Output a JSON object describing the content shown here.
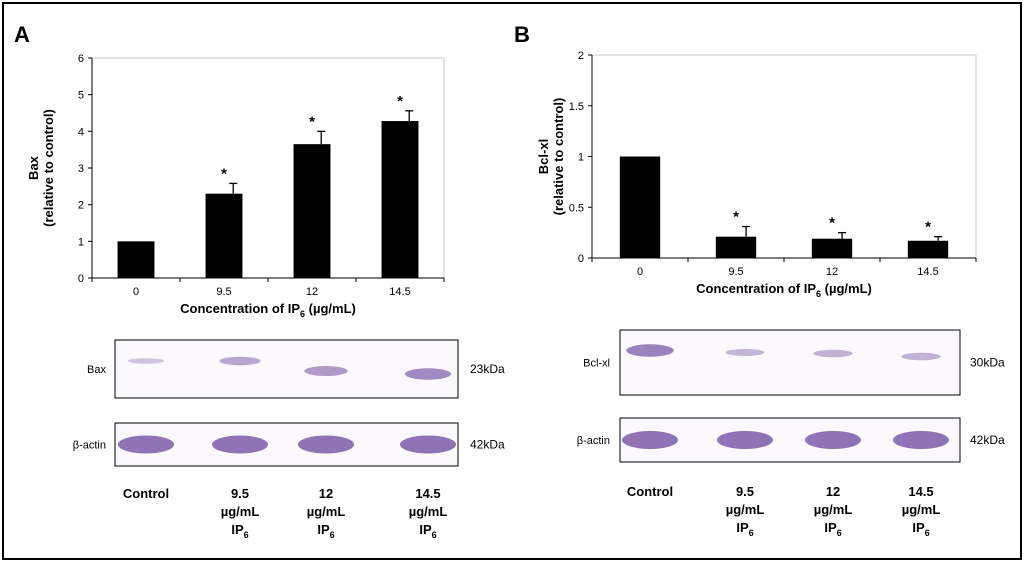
{
  "colors": {
    "bar": "#000000",
    "band": "#7c5ca8",
    "frame": "#000000"
  },
  "chart_data": [
    {
      "type": "bar",
      "panel": "A",
      "categories": [
        "0",
        "9.5",
        "12",
        "14.5"
      ],
      "values": [
        1,
        2.3,
        3.65,
        4.28
      ],
      "errors": [
        0,
        0.28,
        0.35,
        0.28
      ],
      "significance": [
        "",
        "*",
        "*",
        "*"
      ],
      "ylabel_line1": "Bax",
      "ylabel_line2": "(relative to control)",
      "xlabel_main": "Concentration of IP",
      "xlabel_sub": "6",
      "xlabel_tail": " (µg/mL)",
      "ylim": [
        0,
        6
      ],
      "yticks": [
        "0",
        "1",
        "2",
        "3",
        "4",
        "5",
        "6"
      ]
    },
    {
      "type": "bar",
      "panel": "B",
      "categories": [
        "0",
        "9.5",
        "12",
        "14.5"
      ],
      "values": [
        1,
        0.21,
        0.19,
        0.17
      ],
      "errors": [
        0,
        0.1,
        0.06,
        0.04
      ],
      "significance": [
        "",
        "*",
        "*",
        "*"
      ],
      "ylabel_line1": "Bcl-xl",
      "ylabel_line2": "(relative to control)",
      "xlabel_main": "Concentration of IP",
      "xlabel_sub": "6",
      "xlabel_tail": " (µg/mL)",
      "ylim": [
        0,
        2
      ],
      "yticks": [
        "0",
        "0.5",
        "1",
        "1.5",
        "2"
      ]
    }
  ],
  "blots": {
    "A": {
      "rows": [
        {
          "label": "Bax",
          "kda": "23kDa",
          "intensity": [
            0.15,
            0.45,
            0.6,
            0.75
          ]
        },
        {
          "label": "β-actin",
          "kda": "42kDa",
          "intensity": [
            1,
            1,
            1,
            1
          ]
        }
      ],
      "lanes": [
        {
          "line1": "Control",
          "line2": "",
          "line3": "",
          "sub": ""
        },
        {
          "line1": "9.5",
          "line2": "µg/mL",
          "line3": "IP",
          "sub": "6"
        },
        {
          "line1": "12",
          "line2": "µg/mL",
          "line3": "IP",
          "sub": "6"
        },
        {
          "line1": "14.5",
          "line2": "µg/mL",
          "line3": "IP",
          "sub": "6"
        }
      ]
    },
    "B": {
      "rows": [
        {
          "label": "Bcl-xl",
          "kda": "30kDa",
          "intensity": [
            0.85,
            0.3,
            0.35,
            0.35
          ]
        },
        {
          "label": "β-actin",
          "kda": "42kDa",
          "intensity": [
            1,
            1,
            1,
            1
          ]
        }
      ],
      "lanes": [
        {
          "line1": "Control",
          "line2": "",
          "line3": "",
          "sub": ""
        },
        {
          "line1": "9.5",
          "line2": "µg/mL",
          "line3": "IP",
          "sub": "6"
        },
        {
          "line1": "12",
          "line2": "µg/mL",
          "line3": "IP",
          "sub": "6"
        },
        {
          "line1": "14.5",
          "line2": "µg/mL",
          "line3": "IP",
          "sub": "6"
        }
      ]
    }
  }
}
